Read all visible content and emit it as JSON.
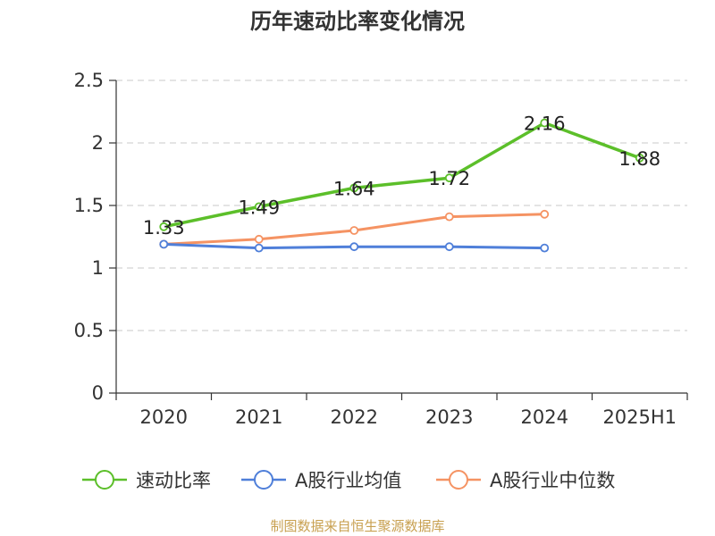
{
  "chart_data": {
    "type": "line",
    "title": "历年速动比率变化情况",
    "categories": [
      "2020",
      "2021",
      "2022",
      "2023",
      "2024",
      "2025H1"
    ],
    "ylim": [
      0,
      2.5
    ],
    "yticks": [
      "0",
      "0.5",
      "1",
      "1.5",
      "2",
      "2.5"
    ],
    "ytick_values": [
      0,
      0.5,
      1,
      1.5,
      2,
      2.5
    ],
    "grid": true,
    "legend_position": "bottom",
    "series": [
      {
        "name": "速动比率",
        "color": "#5cbf2a",
        "values": [
          1.33,
          1.49,
          1.64,
          1.72,
          2.16,
          1.88
        ],
        "labels": [
          "1.33",
          "1.49",
          "1.64",
          "1.72",
          "2.16",
          "1.88"
        ]
      },
      {
        "name": "A股行业均值",
        "color": "#4f7fd9",
        "values": [
          1.19,
          1.16,
          1.17,
          1.17,
          1.16,
          null
        ]
      },
      {
        "name": "A股行业中位数",
        "color": "#f59363",
        "values": [
          1.19,
          1.23,
          1.3,
          1.41,
          1.43,
          null
        ]
      }
    ],
    "source": "制图数据来自恒生聚源数据库"
  }
}
